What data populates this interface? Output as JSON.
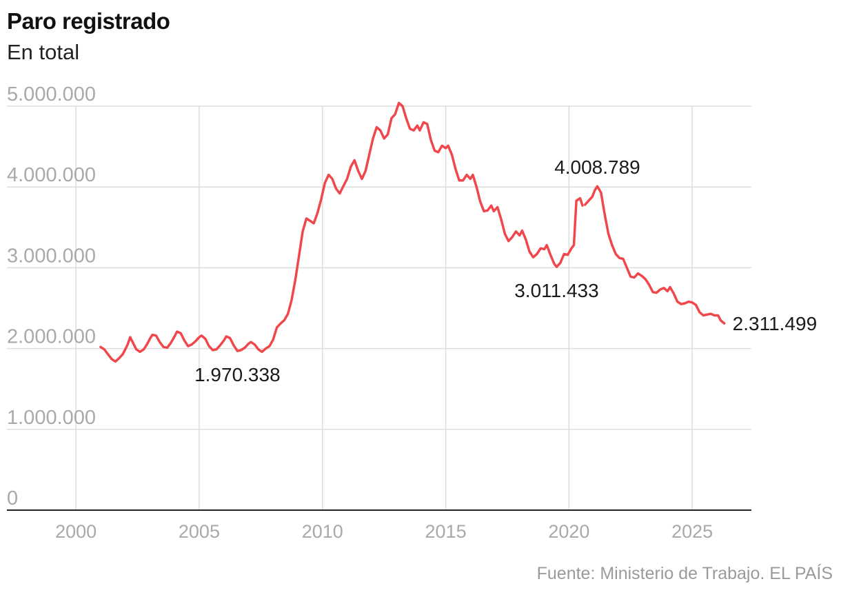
{
  "header": {
    "title": "Paro registrado",
    "subtitle": "En total"
  },
  "footer": {
    "source": "Fuente: Ministerio de Trabajo. EL PAÍS"
  },
  "colors": {
    "series": "#f0474c",
    "grid": "#dddddd",
    "axis": "#222222"
  },
  "chart_data": {
    "type": "line",
    "title": "Paro registrado",
    "subtitle": "En total",
    "xlabel": "",
    "ylabel": "",
    "xlim": [
      1997.2,
      2027.4
    ],
    "ylim": [
      0,
      5000000
    ],
    "grid": true,
    "legend": "none",
    "y_ticks": [
      {
        "value": 0,
        "label": "0"
      },
      {
        "value": 1000000,
        "label": "1.000.000"
      },
      {
        "value": 2000000,
        "label": "2.000.000"
      },
      {
        "value": 3000000,
        "label": "3.000.000"
      },
      {
        "value": 4000000,
        "label": "4.000.000"
      },
      {
        "value": 5000000,
        "label": "5.000.000"
      }
    ],
    "x_ticks": [
      {
        "value": 2000,
        "label": "2000"
      },
      {
        "value": 2005,
        "label": "2005"
      },
      {
        "value": 2010,
        "label": "2010"
      },
      {
        "value": 2015,
        "label": "2015"
      },
      {
        "value": 2020,
        "label": "2020"
      },
      {
        "value": 2025,
        "label": "2025"
      }
    ],
    "series": [
      {
        "values": [
          [
            2001.0,
            2020000
          ],
          [
            2001.15,
            1990000
          ],
          [
            2001.3,
            1930000
          ],
          [
            2001.45,
            1870000
          ],
          [
            2001.6,
            1840000
          ],
          [
            2001.75,
            1880000
          ],
          [
            2001.9,
            1930000
          ],
          [
            2002.0,
            1990000
          ],
          [
            2002.1,
            2050000
          ],
          [
            2002.2,
            2140000
          ],
          [
            2002.3,
            2080000
          ],
          [
            2002.45,
            1990000
          ],
          [
            2002.6,
            1960000
          ],
          [
            2002.75,
            1990000
          ],
          [
            2002.9,
            2060000
          ],
          [
            2003.0,
            2120000
          ],
          [
            2003.1,
            2170000
          ],
          [
            2003.25,
            2160000
          ],
          [
            2003.4,
            2080000
          ],
          [
            2003.55,
            2020000
          ],
          [
            2003.7,
            2010000
          ],
          [
            2003.85,
            2070000
          ],
          [
            2004.0,
            2150000
          ],
          [
            2004.1,
            2210000
          ],
          [
            2004.25,
            2190000
          ],
          [
            2004.4,
            2100000
          ],
          [
            2004.55,
            2030000
          ],
          [
            2004.7,
            2050000
          ],
          [
            2004.85,
            2090000
          ],
          [
            2005.0,
            2140000
          ],
          [
            2005.1,
            2160000
          ],
          [
            2005.25,
            2120000
          ],
          [
            2005.4,
            2030000
          ],
          [
            2005.55,
            1980000
          ],
          [
            2005.7,
            1990000
          ],
          [
            2005.85,
            2040000
          ],
          [
            2006.0,
            2100000
          ],
          [
            2006.1,
            2150000
          ],
          [
            2006.25,
            2130000
          ],
          [
            2006.4,
            2040000
          ],
          [
            2006.55,
            1970338
          ],
          [
            2006.7,
            1980000
          ],
          [
            2006.85,
            2010000
          ],
          [
            2007.0,
            2060000
          ],
          [
            2007.1,
            2080000
          ],
          [
            2007.25,
            2050000
          ],
          [
            2007.4,
            1990000
          ],
          [
            2007.55,
            1960000
          ],
          [
            2007.7,
            2000000
          ],
          [
            2007.85,
            2030000
          ],
          [
            2008.0,
            2110000
          ],
          [
            2008.15,
            2260000
          ],
          [
            2008.3,
            2310000
          ],
          [
            2008.45,
            2350000
          ],
          [
            2008.6,
            2430000
          ],
          [
            2008.75,
            2600000
          ],
          [
            2008.9,
            2850000
          ],
          [
            2009.05,
            3150000
          ],
          [
            2009.2,
            3450000
          ],
          [
            2009.35,
            3610000
          ],
          [
            2009.5,
            3580000
          ],
          [
            2009.65,
            3550000
          ],
          [
            2009.8,
            3680000
          ],
          [
            2009.95,
            3850000
          ],
          [
            2010.1,
            4050000
          ],
          [
            2010.25,
            4150000
          ],
          [
            2010.4,
            4100000
          ],
          [
            2010.55,
            3980000
          ],
          [
            2010.7,
            3920000
          ],
          [
            2010.85,
            4010000
          ],
          [
            2011.0,
            4100000
          ],
          [
            2011.15,
            4250000
          ],
          [
            2011.3,
            4330000
          ],
          [
            2011.45,
            4200000
          ],
          [
            2011.6,
            4100000
          ],
          [
            2011.75,
            4200000
          ],
          [
            2011.9,
            4400000
          ],
          [
            2012.05,
            4600000
          ],
          [
            2012.2,
            4740000
          ],
          [
            2012.35,
            4700000
          ],
          [
            2012.5,
            4600000
          ],
          [
            2012.65,
            4650000
          ],
          [
            2012.8,
            4850000
          ],
          [
            2012.95,
            4900000
          ],
          [
            2013.1,
            5040000
          ],
          [
            2013.25,
            5000000
          ],
          [
            2013.4,
            4850000
          ],
          [
            2013.55,
            4720000
          ],
          [
            2013.7,
            4700000
          ],
          [
            2013.85,
            4760000
          ],
          [
            2013.95,
            4700000
          ],
          [
            2014.1,
            4800000
          ],
          [
            2014.25,
            4780000
          ],
          [
            2014.4,
            4580000
          ],
          [
            2014.55,
            4450000
          ],
          [
            2014.7,
            4430000
          ],
          [
            2014.85,
            4510000
          ],
          [
            2015.0,
            4480000
          ],
          [
            2015.1,
            4510000
          ],
          [
            2015.25,
            4400000
          ],
          [
            2015.4,
            4220000
          ],
          [
            2015.55,
            4080000
          ],
          [
            2015.7,
            4080000
          ],
          [
            2015.85,
            4150000
          ],
          [
            2016.0,
            4100000
          ],
          [
            2016.1,
            4150000
          ],
          [
            2016.25,
            4000000
          ],
          [
            2016.4,
            3820000
          ],
          [
            2016.55,
            3700000
          ],
          [
            2016.7,
            3710000
          ],
          [
            2016.85,
            3770000
          ],
          [
            2016.95,
            3700000
          ],
          [
            2017.1,
            3750000
          ],
          [
            2017.25,
            3600000
          ],
          [
            2017.4,
            3420000
          ],
          [
            2017.55,
            3330000
          ],
          [
            2017.7,
            3380000
          ],
          [
            2017.85,
            3450000
          ],
          [
            2018.0,
            3400000
          ],
          [
            2018.1,
            3460000
          ],
          [
            2018.25,
            3350000
          ],
          [
            2018.4,
            3200000
          ],
          [
            2018.55,
            3130000
          ],
          [
            2018.7,
            3170000
          ],
          [
            2018.85,
            3240000
          ],
          [
            2019.0,
            3230000
          ],
          [
            2019.1,
            3280000
          ],
          [
            2019.25,
            3160000
          ],
          [
            2019.4,
            3050000
          ],
          [
            2019.5,
            3011433
          ],
          [
            2019.65,
            3060000
          ],
          [
            2019.8,
            3170000
          ],
          [
            2019.95,
            3160000
          ],
          [
            2020.1,
            3240000
          ],
          [
            2020.2,
            3280000
          ],
          [
            2020.3,
            3830000
          ],
          [
            2020.45,
            3860000
          ],
          [
            2020.55,
            3770000
          ],
          null,
          [
            2020.65,
            3780000
          ],
          [
            2020.8,
            3830000
          ],
          [
            2020.95,
            3880000
          ],
          [
            2021.05,
            3960000
          ],
          [
            2021.15,
            4008789
          ],
          [
            2021.3,
            3930000
          ],
          [
            2021.45,
            3660000
          ],
          [
            2021.6,
            3420000
          ],
          [
            2021.75,
            3280000
          ],
          [
            2021.9,
            3170000
          ],
          [
            2022.05,
            3120000
          ],
          [
            2022.2,
            3110000
          ],
          [
            2022.35,
            3000000
          ],
          [
            2022.5,
            2890000
          ],
          [
            2022.65,
            2880000
          ],
          [
            2022.8,
            2930000
          ],
          [
            2022.95,
            2900000
          ],
          [
            2023.1,
            2860000
          ],
          [
            2023.25,
            2790000
          ],
          [
            2023.4,
            2700000
          ],
          [
            2023.55,
            2690000
          ],
          [
            2023.7,
            2730000
          ],
          [
            2023.85,
            2750000
          ],
          [
            2024.0,
            2710000
          ],
          [
            2024.1,
            2760000
          ],
          [
            2024.25,
            2680000
          ],
          [
            2024.4,
            2580000
          ],
          [
            2024.55,
            2550000
          ],
          [
            2024.7,
            2560000
          ],
          [
            2024.85,
            2580000
          ],
          [
            2025.0,
            2570000
          ],
          [
            2025.15,
            2540000
          ],
          [
            2025.3,
            2450000
          ],
          [
            2025.45,
            2410000
          ],
          [
            2025.6,
            2420000
          ],
          [
            2025.75,
            2430000
          ],
          [
            2025.9,
            2410000
          ],
          [
            2026.05,
            2410000
          ],
          [
            2026.15,
            2350000
          ],
          [
            2026.3,
            2311499
          ]
        ]
      }
    ],
    "annotations": [
      {
        "x": 2006.55,
        "y": 1970338,
        "label": "1.970.338",
        "position": "below"
      },
      {
        "x": 2021.15,
        "y": 4008789,
        "label": "4.008.789",
        "position": "above"
      },
      {
        "x": 2019.5,
        "y": 3011433,
        "label": "3.011.433",
        "position": "below"
      },
      {
        "x": 2026.3,
        "y": 2311499,
        "label": "2.311.499",
        "position": "right"
      }
    ]
  }
}
